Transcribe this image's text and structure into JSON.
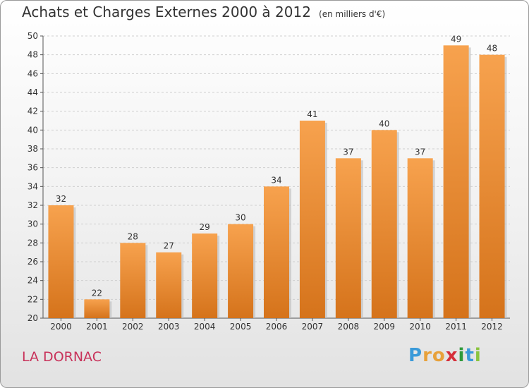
{
  "title": "Achats et Charges Externes 2000 à 2012",
  "subtitle": "(en milliers d'€)",
  "commune": "LA DORNAC",
  "logo": {
    "letters": [
      "P",
      "r",
      "o",
      "x",
      "i",
      "t",
      "i"
    ],
    "colors": [
      "#3a9ad9",
      "#e8a13a",
      "#e8a13a",
      "#d62f3a",
      "#2f9a3a",
      "#3a9ad9",
      "#8ac43f"
    ]
  },
  "colors": {
    "bar_top": "#f7a24e",
    "bar_bottom": "#d5731b",
    "grid": "#cfcfcf",
    "axis": "#555555"
  },
  "chart_data": {
    "type": "bar",
    "title": "Achats et Charges Externes 2000 à 2012",
    "subtitle": "(en milliers d'€)",
    "categories": [
      "2000",
      "2001",
      "2002",
      "2003",
      "2004",
      "2005",
      "2006",
      "2007",
      "2008",
      "2009",
      "2010",
      "2011",
      "2012"
    ],
    "values": [
      32,
      22,
      28,
      27,
      29,
      30,
      34,
      41,
      37,
      40,
      37,
      49,
      48
    ],
    "ylim": [
      20,
      50
    ],
    "yticks": [
      20,
      22,
      24,
      26,
      28,
      30,
      32,
      34,
      36,
      38,
      40,
      42,
      44,
      46,
      48,
      50
    ],
    "grid": true,
    "xlabel": "",
    "ylabel": ""
  }
}
